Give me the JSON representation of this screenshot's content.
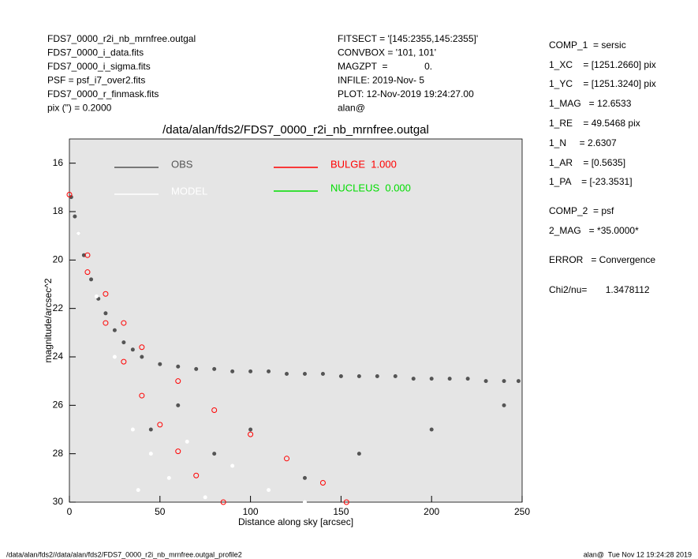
{
  "chart_data": {
    "type": "scatter",
    "title": "/data/alan/fds2/FDS7_0000_r2i_nb_mrnfree.outgal",
    "x_label": "Distance along sky [arcsec]",
    "y_label": "magnitude/arcsec^2",
    "xlim": [
      0,
      250
    ],
    "xticks": [
      0,
      50,
      100,
      150,
      200,
      250
    ],
    "ylim": [
      15,
      30
    ],
    "yticks": [
      16,
      18,
      20,
      22,
      24,
      26,
      28,
      30
    ],
    "y_inverted": true,
    "plot_background": "#e5e5e5",
    "header_left": [
      "FDS7_0000_r2i_nb_mrnfree.outgal",
      "FDS7_0000_i_data.fits",
      "FDS7_0000_i_sigma.fits",
      "PSF     = psf_i7_over2.fits",
      "FDS7_0000_r_finmask.fits",
      "pix (\") =  0.2000"
    ],
    "header_middle": [
      "FITSECT = '[145:2355,145:2355]'",
      "CONVBOX = '101, 101'",
      "MAGZPT  =              0.",
      "INFILE: 2019-Nov- 5",
      "PLOT: 12-Nov-2019 19:24:27.00",
      "alan@"
    ],
    "header_right": [
      "COMP_1  = sersic",
      "1_XC    = [1251.2660] pix",
      "1_YC    = [1251.3240] pix",
      "1_MAG   = 12.6533",
      "1_RE    = 49.5468 pix",
      "1_N     = 2.6307",
      "1_AR    = [0.5635]",
      "1_PA    = [-23.3531]",
      "COMP_2  = psf",
      "2_MAG   = *35.0000*",
      "ERROR   = Convergence",
      "Chi2/nu=       1.3478112"
    ],
    "footer_left": "/data/alan/fds2//data/alan/fds2/FDS7_0000_r2i_nb_mrnfree.outgal_profile2",
    "footer_right": "alan@  Tue Nov 12 19:24:28 2019",
    "series": [
      {
        "name": "OBS",
        "color": "#555555",
        "x": [
          1,
          3,
          5,
          8,
          12,
          16,
          20,
          25,
          30,
          35,
          40,
          50,
          60,
          70,
          80,
          90,
          100,
          110,
          120,
          130,
          140,
          150,
          160,
          170,
          180,
          190,
          200,
          210,
          220,
          230,
          240,
          248,
          45,
          60,
          80,
          100,
          130,
          160,
          200,
          240
        ],
        "values": [
          17.4,
          18.2,
          18.9,
          19.8,
          20.8,
          21.6,
          22.2,
          22.9,
          23.4,
          23.7,
          24.0,
          24.3,
          24.4,
          24.5,
          24.5,
          24.6,
          24.6,
          24.6,
          24.7,
          24.7,
          24.7,
          24.8,
          24.8,
          24.8,
          24.8,
          24.9,
          24.9,
          24.9,
          24.9,
          25.0,
          25.0,
          25.0,
          27,
          26,
          28,
          27,
          29,
          28,
          27,
          26
        ]
      },
      {
        "name": "MODEL",
        "color": "#ffffff",
        "x": [
          5,
          15,
          25,
          35,
          38,
          45,
          55,
          65,
          75,
          90,
          110,
          130
        ],
        "values": [
          18.9,
          21.5,
          24,
          27,
          29.5,
          28,
          29,
          27.5,
          29.8,
          28.5,
          29.5,
          30
        ]
      },
      {
        "name": "BULGE  1.000",
        "color": "#ff0000",
        "x": [
          0,
          10,
          20,
          30,
          40,
          60,
          80,
          100,
          120,
          140,
          153,
          10,
          20,
          30,
          40,
          50,
          60,
          70,
          85
        ],
        "values": [
          17.3,
          19.8,
          21.4,
          22.6,
          23.6,
          25.0,
          26.2,
          27.2,
          28.2,
          29.2,
          30,
          20.5,
          22.6,
          24.2,
          25.6,
          26.8,
          27.9,
          28.9,
          30
        ]
      },
      {
        "name": "NUCLEUS  0.000",
        "color": "#00dd00",
        "x": [],
        "values": []
      }
    ]
  }
}
